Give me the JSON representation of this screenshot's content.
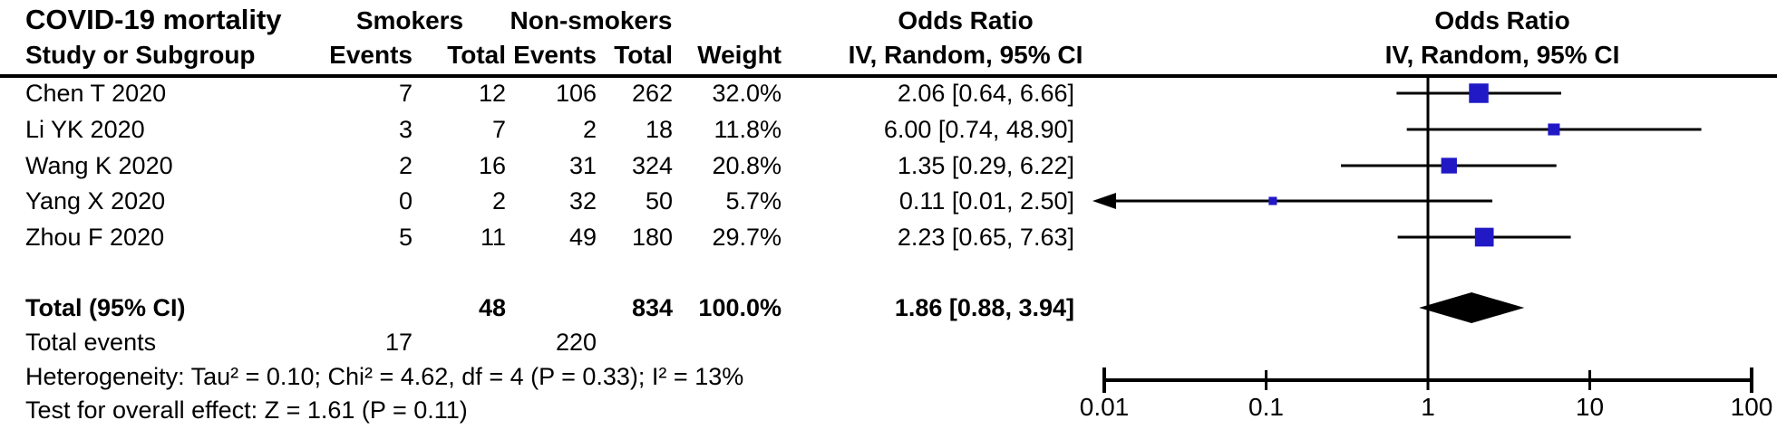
{
  "title": "COVID-19 mortality",
  "columns": {
    "group_smokers": "Smokers",
    "group_nonsmokers": "Non-smokers",
    "study": "Study or Subgroup",
    "events": "Events",
    "total": "Total",
    "weight": "Weight",
    "or_label": "Odds Ratio",
    "or_sub": "IV, Random, 95% CI"
  },
  "studies": [
    {
      "name": "Chen T 2020",
      "events_smokers": "7",
      "total_smokers": "12",
      "events_nonsmokers": "106",
      "total_nonsmokers": "262",
      "weight": "32.0%",
      "or_ci": "2.06 [0.64, 6.66]"
    },
    {
      "name": "Li YK 2020",
      "events_smokers": "3",
      "total_smokers": "7",
      "events_nonsmokers": "2",
      "total_nonsmokers": "18",
      "weight": "11.8%",
      "or_ci": "6.00 [0.74, 48.90]"
    },
    {
      "name": "Wang K 2020",
      "events_smokers": "2",
      "total_smokers": "16",
      "events_nonsmokers": "31",
      "total_nonsmokers": "324",
      "weight": "20.8%",
      "or_ci": "1.35 [0.29, 6.22]"
    },
    {
      "name": "Yang X 2020",
      "events_smokers": "0",
      "total_smokers": "2",
      "events_nonsmokers": "32",
      "total_nonsmokers": "50",
      "weight": "5.7%",
      "or_ci": "0.11 [0.01, 2.50]"
    },
    {
      "name": "Zhou F 2020",
      "events_smokers": "5",
      "total_smokers": "11",
      "events_nonsmokers": "49",
      "total_nonsmokers": "180",
      "weight": "29.7%",
      "or_ci": "2.23 [0.65, 7.63]"
    }
  ],
  "total_row": {
    "label": "Total (95% CI)",
    "total_smokers": "48",
    "total_nonsmokers": "834",
    "weight": "100.0%",
    "or_ci": "1.86 [0.88, 3.94]"
  },
  "total_events_row": {
    "label": "Total events",
    "events_smokers": "17",
    "events_nonsmokers": "220"
  },
  "footnotes": {
    "heterogeneity": "Heterogeneity: Tau² = 0.10; Chi² = 4.62, df = 4 (P = 0.33); I² = 13%",
    "overall_effect": "Test for overall effect: Z = 1.61 (P = 0.11)"
  },
  "chart_data": {
    "type": "forest",
    "title": "Odds Ratio",
    "subtitle": "IV, Random, 95% CI",
    "x_scale": "log10",
    "x_range": [
      0.01,
      100
    ],
    "x_ticks": [
      0.01,
      0.1,
      1,
      10,
      100
    ],
    "x_tick_labels": [
      "0.01",
      "0.1",
      "1",
      "10",
      "100"
    ],
    "null_line": 1,
    "estimates": [
      {
        "study": "Chen T 2020",
        "or": 2.06,
        "ci_low": 0.64,
        "ci_high": 6.66,
        "weight_pct": 32.0,
        "clipped_low": false
      },
      {
        "study": "Li YK 2020",
        "or": 6.0,
        "ci_low": 0.74,
        "ci_high": 48.9,
        "weight_pct": 11.8,
        "clipped_low": false
      },
      {
        "study": "Wang K 2020",
        "or": 1.35,
        "ci_low": 0.29,
        "ci_high": 6.22,
        "weight_pct": 20.8,
        "clipped_low": false
      },
      {
        "study": "Yang X 2020",
        "or": 0.11,
        "ci_low": 0.01,
        "ci_high": 2.5,
        "weight_pct": 5.7,
        "clipped_low": true
      },
      {
        "study": "Zhou F 2020",
        "or": 2.23,
        "ci_low": 0.65,
        "ci_high": 7.63,
        "weight_pct": 29.7,
        "clipped_low": false
      }
    ],
    "summary": {
      "label": "Total (95% CI)",
      "or": 1.86,
      "ci_low": 0.88,
      "ci_high": 3.94
    },
    "colors": {
      "marker": "#2119c6",
      "summary": "#000000",
      "line": "#000000"
    }
  }
}
